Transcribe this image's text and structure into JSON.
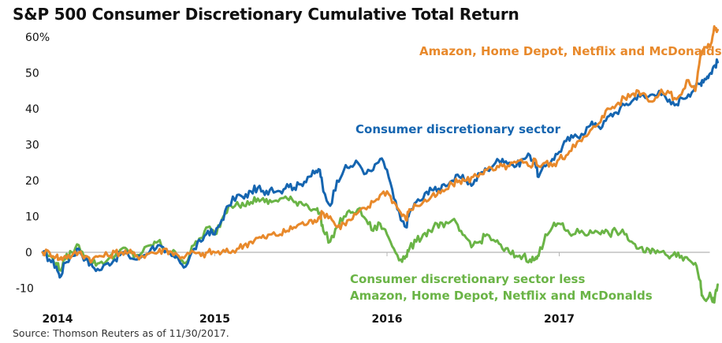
{
  "chart_data": {
    "type": "line",
    "title": "S&P 500 Consumer Discretionary Cumulative Total Return",
    "source": "Source: Thomson Reuters as of 11/30/2017.",
    "xlabel": "",
    "ylabel": "",
    "x_ticks": [
      "2014",
      "2015",
      "2016",
      "2017"
    ],
    "x_range": [
      2014.0,
      2017.92
    ],
    "y_ticks": [
      {
        "value": 60,
        "label": "60%"
      },
      {
        "value": 50,
        "label": "50"
      },
      {
        "value": 40,
        "label": "40"
      },
      {
        "value": 30,
        "label": "30"
      },
      {
        "value": 20,
        "label": "20"
      },
      {
        "value": 10,
        "label": "10"
      },
      {
        "value": 0,
        "label": "0"
      },
      {
        "value": -10,
        "label": "-10"
      }
    ],
    "ylim": [
      -10,
      60
    ],
    "grid": false,
    "zero_line": true,
    "legend": "inline-annotations",
    "x": [
      2014.0,
      2014.04,
      2014.08,
      2014.1,
      2014.13,
      2014.17,
      2014.21,
      2014.25,
      2014.29,
      2014.33,
      2014.38,
      2014.42,
      2014.46,
      2014.5,
      2014.54,
      2014.58,
      2014.63,
      2014.67,
      2014.71,
      2014.75,
      2014.79,
      2014.83,
      2014.88,
      2014.92,
      2014.96,
      2015.0,
      2015.04,
      2015.08,
      2015.13,
      2015.17,
      2015.21,
      2015.25,
      2015.29,
      2015.33,
      2015.38,
      2015.42,
      2015.46,
      2015.5,
      2015.54,
      2015.58,
      2015.61,
      2015.63,
      2015.67,
      2015.71,
      2015.75,
      2015.79,
      2015.83,
      2015.88,
      2015.92,
      2015.96,
      2016.0,
      2016.04,
      2016.08,
      2016.11,
      2016.13,
      2016.17,
      2016.21,
      2016.25,
      2016.29,
      2016.33,
      2016.38,
      2016.42,
      2016.46,
      2016.5,
      2016.54,
      2016.58,
      2016.63,
      2016.67,
      2016.71,
      2016.75,
      2016.79,
      2016.83,
      2016.86,
      2016.88,
      2016.92,
      2016.96,
      2017.0,
      2017.04,
      2017.08,
      2017.13,
      2017.17,
      2017.21,
      2017.25,
      2017.29,
      2017.33,
      2017.38,
      2017.42,
      2017.46,
      2017.5,
      2017.54,
      2017.58,
      2017.63,
      2017.67,
      2017.71,
      2017.75,
      2017.79,
      2017.82,
      2017.83,
      2017.86,
      2017.88,
      2017.9,
      2017.92
    ],
    "series": [
      {
        "name": "Consumer discretionary sector",
        "label": "Consumer discretionary sector",
        "color": "#1565b0",
        "values": [
          0,
          -2,
          -4,
          -7,
          -3,
          -1,
          1,
          -2,
          -4,
          -5,
          -3,
          -2,
          0,
          -1,
          -2,
          -1,
          1,
          2,
          0,
          -1,
          -2,
          -4,
          1,
          3,
          6,
          5,
          9,
          13,
          16,
          15,
          17,
          18,
          16,
          18,
          17,
          19,
          18,
          19,
          21,
          22,
          23,
          17,
          13,
          20,
          23,
          24,
          25,
          22,
          23,
          26,
          23,
          15,
          9,
          7,
          11,
          14,
          15,
          18,
          17,
          19,
          20,
          21,
          20,
          19,
          22,
          23,
          25,
          26,
          25,
          24,
          26,
          27,
          25,
          21,
          24,
          26,
          28,
          31,
          32,
          33,
          35,
          36,
          35,
          38,
          39,
          41,
          42,
          44,
          43,
          44,
          45,
          42,
          41,
          43,
          44,
          46,
          47,
          48,
          49,
          50,
          52,
          53
        ]
      },
      {
        "name": "Amazon, Home Depot, Netflix and McDonalds",
        "label": "Amazon, Home Depot, Netflix and McDonalds",
        "color": "#e8892b",
        "values": [
          0,
          0,
          -1,
          -2,
          -1,
          -1,
          0,
          -1,
          -2,
          -1,
          -1,
          0,
          0,
          0,
          -1,
          -1,
          0,
          0,
          1,
          0,
          -1,
          -1,
          0,
          -1,
          0,
          0,
          0,
          0,
          1,
          2,
          3,
          4,
          4,
          5,
          5,
          6,
          7,
          8,
          8,
          9,
          10,
          11,
          10,
          7,
          8,
          9,
          11,
          12,
          14,
          16,
          17,
          14,
          11,
          9,
          12,
          13,
          14,
          15,
          16,
          17,
          19,
          20,
          20,
          21,
          22,
          23,
          23,
          24,
          24,
          25,
          25,
          24,
          26,
          24,
          25,
          24,
          26,
          27,
          30,
          31,
          33,
          35,
          38,
          40,
          41,
          43,
          44,
          45,
          44,
          42,
          44,
          45,
          43,
          44,
          48,
          45,
          55,
          56,
          57,
          58,
          63,
          62
        ]
      },
      {
        "name": "Consumer discretionary sector less Amazon, Home Depot, Netflix and McDonalds",
        "label_line1": "Consumer discretionary sector less",
        "label_line2": "Amazon, Home Depot, Netflix and McDonalds",
        "color": "#6ab446",
        "values": [
          0,
          -1,
          -3,
          -5,
          -2,
          0,
          2,
          -1,
          -3,
          -3,
          -2,
          -1,
          1,
          0,
          -1,
          0,
          2,
          3,
          1,
          0,
          -1,
          -3,
          2,
          4,
          7,
          5,
          9,
          13,
          14,
          13,
          14,
          15,
          14,
          14,
          15,
          15,
          14,
          14,
          13,
          12,
          11,
          6,
          3,
          7,
          10,
          11,
          12,
          9,
          6,
          8,
          5,
          1,
          -2,
          -1,
          1,
          3,
          5,
          6,
          8,
          7,
          9,
          6,
          4,
          2,
          3,
          5,
          3,
          1,
          0,
          -1,
          -1,
          -2,
          -2,
          -1,
          5,
          7,
          8,
          6,
          5,
          6,
          5,
          6,
          6,
          5,
          6,
          5,
          3,
          1,
          0,
          1,
          0,
          -1,
          0,
          -1,
          -2,
          -3,
          -8,
          -12,
          -13,
          -12,
          -14,
          -9
        ]
      }
    ],
    "annotations": [
      {
        "text": "Amazon, Home Depot, Netflix and McDonalds",
        "color": "#e8892b"
      },
      {
        "text": "Consumer discretionary sector",
        "color": "#1565b0"
      },
      {
        "text": "Consumer discretionary sector less",
        "color": "#6ab446"
      },
      {
        "text": "Amazon, Home Depot, Netflix and McDonalds",
        "color": "#6ab446"
      }
    ]
  },
  "colors": {
    "axis_line": "#b5b5b5",
    "text": "#111111"
  }
}
